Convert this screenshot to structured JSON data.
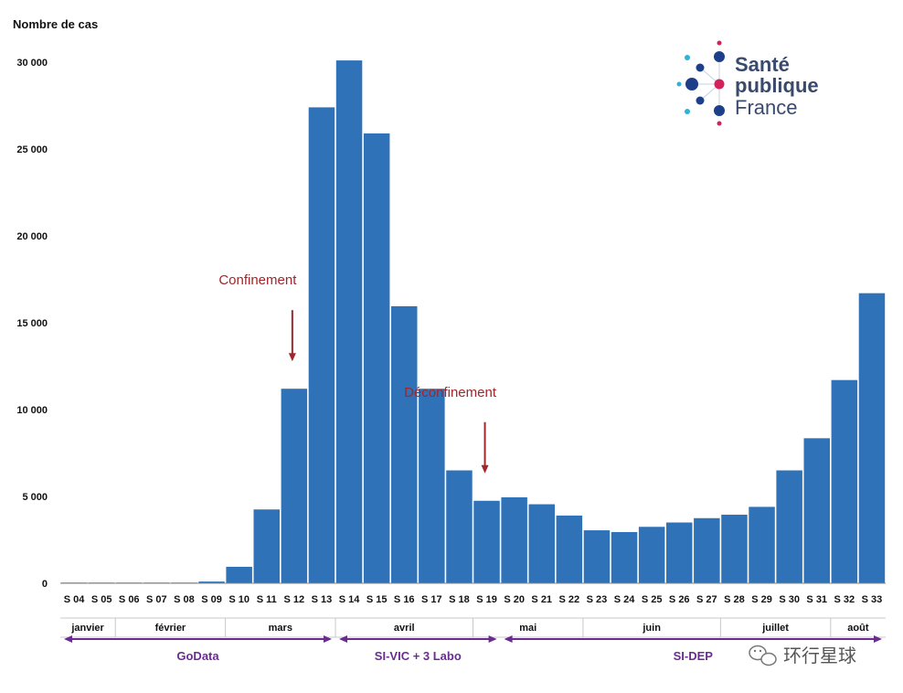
{
  "chart_data": {
    "type": "bar",
    "ylabel": "Nombre de cas",
    "ylim": [
      0,
      30000
    ],
    "yticks": [
      0,
      5000,
      10000,
      15000,
      20000,
      25000,
      30000
    ],
    "ytick_labels": [
      "0",
      "5 000",
      "10 000",
      "15 000",
      "20 000",
      "25 000",
      "30 000"
    ],
    "categories": [
      "S 04",
      "S 05",
      "S 06",
      "S 07",
      "S 08",
      "S 09",
      "S 10",
      "S 11",
      "S 12",
      "S 13",
      "S 14",
      "S 15",
      "S 16",
      "S 17",
      "S 18",
      "S 19",
      "S 20",
      "S 21",
      "S 22",
      "S 23",
      "S 24",
      "S 25",
      "S 26",
      "S 27",
      "S 28",
      "S 29",
      "S 30",
      "S 31",
      "S 32",
      "S 33"
    ],
    "values": [
      0,
      10,
      20,
      20,
      0,
      100,
      950,
      4250,
      11200,
      27400,
      30100,
      25900,
      15950,
      11200,
      6500,
      4750,
      4950,
      4550,
      3900,
      3050,
      2950,
      3250,
      3500,
      3750,
      3950,
      4400,
      6500,
      8350,
      11700,
      16700
    ],
    "bar_color": "#3072b8",
    "months": [
      {
        "label": "janvier",
        "from": 0,
        "to": 1
      },
      {
        "label": "février",
        "from": 2,
        "to": 5
      },
      {
        "label": "mars",
        "from": 6,
        "to": 9
      },
      {
        "label": "avril",
        "from": 10,
        "to": 14
      },
      {
        "label": "mai",
        "from": 15,
        "to": 18
      },
      {
        "label": "juin",
        "from": 19,
        "to": 23
      },
      {
        "label": "juillet",
        "from": 24,
        "to": 27
      },
      {
        "label": "août",
        "from": 28,
        "to": 29
      }
    ],
    "sources": [
      {
        "label": "GoData",
        "from": 0,
        "to": 9
      },
      {
        "label": "SI-VIC + 3 Labo",
        "from": 10,
        "to": 15
      },
      {
        "label": "SI-DEP",
        "from": 16,
        "to": 29
      }
    ],
    "annotations": [
      {
        "label": "Confinement",
        "at": 8
      },
      {
        "label": "Déconfinement",
        "at": 15
      }
    ],
    "annotation_color": "#a0262a",
    "source_color": "#6a2c91"
  },
  "logo": {
    "line1": "Santé",
    "line2": "publique",
    "line3": "France"
  },
  "watermark": "环行星球"
}
